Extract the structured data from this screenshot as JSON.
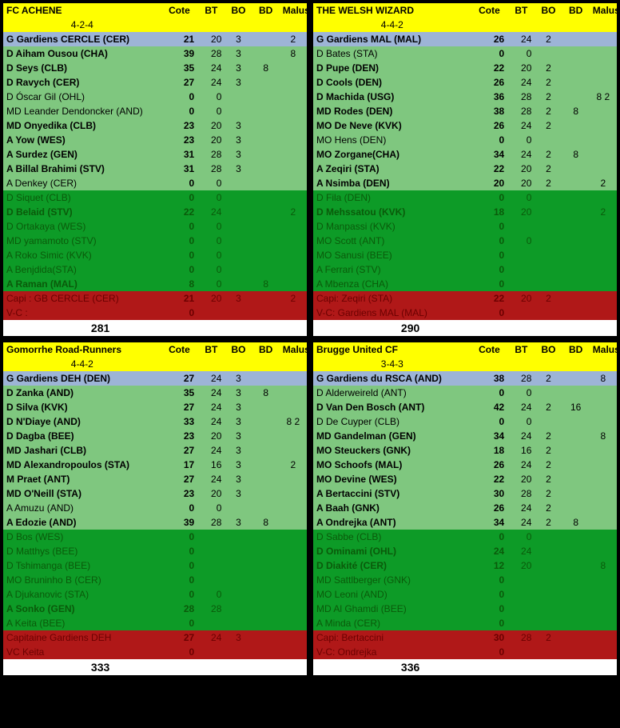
{
  "colors": {
    "yellow": "#ffff00",
    "blue": "#9db4d6",
    "lightgreen": "#7fc77f",
    "green": "#0d9b27",
    "red": "#b01818",
    "darkgreen_text": "#0a5a0a",
    "darkred_text": "#6b0000"
  },
  "cols": [
    "Cote",
    "BT",
    "BO",
    "BD",
    "Malus"
  ],
  "teams": [
    {
      "name": "FC ACHENE",
      "formation": "4-2-4",
      "total": "281",
      "gk": {
        "label": "G Gardiens CERCLE (CER)",
        "cote": "21",
        "bt": "20",
        "bo": "3",
        "bd": "",
        "malus": "2"
      },
      "starters": [
        {
          "label": "D Aiham Ousou (CHA)",
          "cote": "39",
          "bt": "28",
          "bo": "3",
          "bd": "",
          "malus": "8",
          "bold": true
        },
        {
          "label": "D Seys (CLB)",
          "cote": "35",
          "bt": "24",
          "bo": "3",
          "bd": "8",
          "malus": "",
          "bold": true
        },
        {
          "label": "D Ravych (CER)",
          "cote": "27",
          "bt": "24",
          "bo": "3",
          "bd": "",
          "malus": "",
          "bold": true
        },
        {
          "label": "D Óscar Gil (OHL)",
          "cote": "0",
          "bt": "0",
          "bo": "",
          "bd": "",
          "malus": "",
          "bold": false
        },
        {
          "label": "MD Leander Dendoncker (AND)",
          "cote": "0",
          "bt": "0",
          "bo": "",
          "bd": "",
          "malus": "",
          "bold": false
        },
        {
          "label": "MD Onyedika (CLB)",
          "cote": "23",
          "bt": "20",
          "bo": "3",
          "bd": "",
          "malus": "",
          "bold": true
        },
        {
          "label": "A Yow (WES)",
          "cote": "23",
          "bt": "20",
          "bo": "3",
          "bd": "",
          "malus": "",
          "bold": true
        },
        {
          "label": "A Surdez (GEN)",
          "cote": "31",
          "bt": "28",
          "bo": "3",
          "bd": "",
          "malus": "",
          "bold": true
        },
        {
          "label": "A Billal Brahimi (STV)",
          "cote": "31",
          "bt": "28",
          "bo": "3",
          "bd": "",
          "malus": "",
          "bold": true
        },
        {
          "label": "A Denkey (CER)",
          "cote": "0",
          "bt": "0",
          "bo": "",
          "bd": "",
          "malus": "",
          "bold": false
        }
      ],
      "subs": [
        {
          "label": "D Siquet (CLB)",
          "cote": "0",
          "bt": "0",
          "bo": "",
          "bd": "",
          "malus": ""
        },
        {
          "label": "D Belaid (STV)",
          "cote": "22",
          "bt": "24",
          "bo": "",
          "bd": "",
          "malus": "2",
          "bold": true
        },
        {
          "label": "D Ortakaya (WES)",
          "cote": "0",
          "bt": "0",
          "bo": "",
          "bd": "",
          "malus": ""
        },
        {
          "label": "MD yamamoto (STV)",
          "cote": "0",
          "bt": "0",
          "bo": "",
          "bd": "",
          "malus": ""
        },
        {
          "label": "A Roko Simic (KVK)",
          "cote": "0",
          "bt": "0",
          "bo": "",
          "bd": "",
          "malus": ""
        },
        {
          "label": "A Benjdida(STA)",
          "cote": "0",
          "bt": "0",
          "bo": "",
          "bd": "",
          "malus": ""
        },
        {
          "label": "A Raman (MAL)",
          "cote": "8",
          "bt": "0",
          "bo": "",
          "bd": "8",
          "malus": "",
          "bold": true
        }
      ],
      "capi": {
        "label": "Capi :  GB CERCLE (CER)",
        "cote": "21",
        "bt": "20",
        "bo": "3",
        "bd": "",
        "malus": "2"
      },
      "vc": {
        "label": "V-C :",
        "cote": "0",
        "bt": "",
        "bo": "",
        "bd": "",
        "malus": ""
      }
    },
    {
      "name": "THE WELSH WIZARD",
      "formation": "4-4-2",
      "total": "290",
      "gk": {
        "label": "G Gardiens MAL (MAL)",
        "cote": "26",
        "bt": "24",
        "bo": "2",
        "bd": "",
        "malus": ""
      },
      "starters": [
        {
          "label": "D Bates (STA)",
          "cote": "0",
          "bt": "0",
          "bo": "",
          "bd": "",
          "malus": "",
          "bold": false
        },
        {
          "label": "D Pupe (DEN)",
          "cote": "22",
          "bt": "20",
          "bo": "2",
          "bd": "",
          "malus": "",
          "bold": true
        },
        {
          "label": "D Cools (DEN)",
          "cote": "26",
          "bt": "24",
          "bo": "2",
          "bd": "",
          "malus": "",
          "bold": true
        },
        {
          "label": "D Machida (USG)",
          "cote": "36",
          "bt": "28",
          "bo": "2",
          "bd": "",
          "malus": "8    2",
          "bold": true
        },
        {
          "label": "MD Rodes (DEN)",
          "cote": "38",
          "bt": "28",
          "bo": "2",
          "bd": "8",
          "malus": "",
          "bold": true
        },
        {
          "label": "MO De Neve (KVK)",
          "cote": "26",
          "bt": "24",
          "bo": "2",
          "bd": "",
          "malus": "",
          "bold": true
        },
        {
          "label": "MO Hens (DEN)",
          "cote": "0",
          "bt": "0",
          "bo": "",
          "bd": "",
          "malus": "",
          "bold": false
        },
        {
          "label": "MO Zorgane(CHA)",
          "cote": "34",
          "bt": "24",
          "bo": "2",
          "bd": "8",
          "malus": "",
          "bold": true
        },
        {
          "label": "A Zeqiri (STA)",
          "cote": "22",
          "bt": "20",
          "bo": "2",
          "bd": "",
          "malus": "",
          "bold": true
        },
        {
          "label": "A Nsimba (DEN)",
          "cote": "20",
          "bt": "20",
          "bo": "2",
          "bd": "",
          "malus": "2",
          "bold": true
        }
      ],
      "subs": [
        {
          "label": "D Fila (DEN)",
          "cote": "0",
          "bt": "0",
          "bo": "",
          "bd": "",
          "malus": ""
        },
        {
          "label": "D Mehssatou (KVK)",
          "cote": "18",
          "bt": "20",
          "bo": "",
          "bd": "",
          "malus": "2",
          "bold": true
        },
        {
          "label": "D Manpassi (KVK)",
          "cote": "0",
          "bt": "",
          "bo": "",
          "bd": "",
          "malus": ""
        },
        {
          "label": "MO Scott (ANT)",
          "cote": "0",
          "bt": "0",
          "bo": "",
          "bd": "",
          "malus": ""
        },
        {
          "label": "MO Sanusi (BEE)",
          "cote": "0",
          "bt": "",
          "bo": "",
          "bd": "",
          "malus": ""
        },
        {
          "label": "A Ferrari (STV)",
          "cote": "0",
          "bt": "",
          "bo": "",
          "bd": "",
          "malus": ""
        },
        {
          "label": "A Mbenza (CHA)",
          "cote": "0",
          "bt": "",
          "bo": "",
          "bd": "",
          "malus": ""
        }
      ],
      "capi": {
        "label": "Capi:  Zeqiri (STA)",
        "cote": "22",
        "bt": "20",
        "bo": "2",
        "bd": "",
        "malus": ""
      },
      "vc": {
        "label": "V-C: Gardiens MAL (MAL)",
        "cote": "0",
        "bt": "",
        "bo": "",
        "bd": "",
        "malus": ""
      }
    },
    {
      "name": "Gomorrhe Road-Runners",
      "formation": "4-4-2",
      "total": "333",
      "gk": {
        "label": "G Gardiens DEH (DEN)",
        "cote": "27",
        "bt": "24",
        "bo": "3",
        "bd": "",
        "malus": ""
      },
      "starters": [
        {
          "label": "D Zanka (AND)",
          "cote": "35",
          "bt": "24",
          "bo": "3",
          "bd": "8",
          "malus": "",
          "bold": true
        },
        {
          "label": "D Silva (KVK)",
          "cote": "27",
          "bt": "24",
          "bo": "3",
          "bd": "",
          "malus": "",
          "bold": true
        },
        {
          "label": "D N'Diaye (AND)",
          "cote": "33",
          "bt": "24",
          "bo": "3",
          "bd": "",
          "malus": "8    2",
          "bold": true
        },
        {
          "label": "D Dagba (BEE)",
          "cote": "23",
          "bt": "20",
          "bo": "3",
          "bd": "",
          "malus": "",
          "bold": true
        },
        {
          "label": "MD Jashari (CLB)",
          "cote": "27",
          "bt": "24",
          "bo": "3",
          "bd": "",
          "malus": "",
          "bold": true
        },
        {
          "label": "MD Alexandropoulos (STA)",
          "cote": "17",
          "bt": "16",
          "bo": "3",
          "bd": "",
          "malus": "2",
          "bold": true
        },
        {
          "label": "M Praet (ANT)",
          "cote": "27",
          "bt": "24",
          "bo": "3",
          "bd": "",
          "malus": "",
          "bold": true
        },
        {
          "label": "MD O'Neill (STA)",
          "cote": "23",
          "bt": "20",
          "bo": "3",
          "bd": "",
          "malus": "",
          "bold": true
        },
        {
          "label": "A Amuzu (AND)",
          "cote": "0",
          "bt": "0",
          "bo": "",
          "bd": "",
          "malus": "",
          "bold": false
        },
        {
          "label": "A Edozie (AND)",
          "cote": "39",
          "bt": "28",
          "bo": "3",
          "bd": "8",
          "malus": "",
          "bold": true
        }
      ],
      "subs": [
        {
          "label": "D Bos (WES)",
          "cote": "0",
          "bt": "",
          "bo": "",
          "bd": "",
          "malus": ""
        },
        {
          "label": "D Matthys (BEE)",
          "cote": "0",
          "bt": "",
          "bo": "",
          "bd": "",
          "malus": ""
        },
        {
          "label": "D Tshimanga (BEE)",
          "cote": "0",
          "bt": "",
          "bo": "",
          "bd": "",
          "malus": ""
        },
        {
          "label": "MO Bruninho B (CER)",
          "cote": "0",
          "bt": "",
          "bo": "",
          "bd": "",
          "malus": ""
        },
        {
          "label": "A Djukanovic (STA)",
          "cote": "0",
          "bt": "0",
          "bo": "",
          "bd": "",
          "malus": ""
        },
        {
          "label": "A Sonko (GEN)",
          "cote": "28",
          "bt": "28",
          "bo": "",
          "bd": "",
          "malus": "",
          "bold": true
        },
        {
          "label": "A Keita (BEE)",
          "cote": "0",
          "bt": "",
          "bo": "",
          "bd": "",
          "malus": ""
        }
      ],
      "capi": {
        "label": "Capitaine Gardiens DEH",
        "cote": "27",
        "bt": "24",
        "bo": "3",
        "bd": "",
        "malus": ""
      },
      "vc": {
        "label": "VC Keita",
        "cote": "0",
        "bt": "",
        "bo": "",
        "bd": "",
        "malus": ""
      }
    },
    {
      "name": "Brugge United CF",
      "formation": "3-4-3",
      "total": "336",
      "gk": {
        "label": "G Gardiens du RSCA (AND)",
        "cote": "38",
        "bt": "28",
        "bo": "2",
        "bd": "",
        "malus": "8"
      },
      "starters": [
        {
          "label": "D Alderweireld (ANT)",
          "cote": "0",
          "bt": "0",
          "bo": "",
          "bd": "",
          "malus": "",
          "bold": false
        },
        {
          "label": "D Van Den Bosch (ANT)",
          "cote": "42",
          "bt": "24",
          "bo": "2",
          "bd": "16",
          "malus": "",
          "bold": true
        },
        {
          "label": "D De Cuyper (CLB)",
          "cote": "0",
          "bt": "0",
          "bo": "",
          "bd": "",
          "malus": "",
          "bold": false
        },
        {
          "label": "MD Gandelman (GEN)",
          "cote": "34",
          "bt": "24",
          "bo": "2",
          "bd": "",
          "malus": "8",
          "bold": true
        },
        {
          "label": "MO Steuckers (GNK)",
          "cote": "18",
          "bt": "16",
          "bo": "2",
          "bd": "",
          "malus": "",
          "bold": true
        },
        {
          "label": "MO Schoofs (MAL)",
          "cote": "26",
          "bt": "24",
          "bo": "2",
          "bd": "",
          "malus": "",
          "bold": true
        },
        {
          "label": "MO Devine (WES)",
          "cote": "22",
          "bt": "20",
          "bo": "2",
          "bd": "",
          "malus": "",
          "bold": true
        },
        {
          "label": "A Bertaccini (STV)",
          "cote": "30",
          "bt": "28",
          "bo": "2",
          "bd": "",
          "malus": "",
          "bold": true
        },
        {
          "label": "A Baah (GNK)",
          "cote": "26",
          "bt": "24",
          "bo": "2",
          "bd": "",
          "malus": "",
          "bold": true
        },
        {
          "label": "A Ondrejka (ANT)",
          "cote": "34",
          "bt": "24",
          "bo": "2",
          "bd": "8",
          "malus": "",
          "bold": true
        }
      ],
      "subs": [
        {
          "label": "D Sabbe (CLB)",
          "cote": "0",
          "bt": "0",
          "bo": "",
          "bd": "",
          "malus": ""
        },
        {
          "label": "D Ominami (OHL)",
          "cote": "24",
          "bt": "24",
          "bo": "",
          "bd": "",
          "malus": "",
          "bold": true
        },
        {
          "label": "D Diakité (CER)",
          "cote": "12",
          "bt": "20",
          "bo": "",
          "bd": "",
          "malus": "8",
          "bold": true
        },
        {
          "label": "MD Sattlberger (GNK)",
          "cote": "0",
          "bt": "",
          "bo": "",
          "bd": "",
          "malus": ""
        },
        {
          "label": "MO Leoni (AND)",
          "cote": "0",
          "bt": "",
          "bo": "",
          "bd": "",
          "malus": ""
        },
        {
          "label": "MD Al Ghamdi (BEE)",
          "cote": "0",
          "bt": "",
          "bo": "",
          "bd": "",
          "malus": ""
        },
        {
          "label": "A Minda (CER)",
          "cote": "0",
          "bt": "",
          "bo": "",
          "bd": "",
          "malus": ""
        }
      ],
      "capi": {
        "label": "Capi: Bertaccini",
        "cote": "30",
        "bt": "28",
        "bo": "2",
        "bd": "",
        "malus": ""
      },
      "vc": {
        "label": "V-C: Ondrejka",
        "cote": "0",
        "bt": "",
        "bo": "",
        "bd": "",
        "malus": ""
      }
    }
  ]
}
